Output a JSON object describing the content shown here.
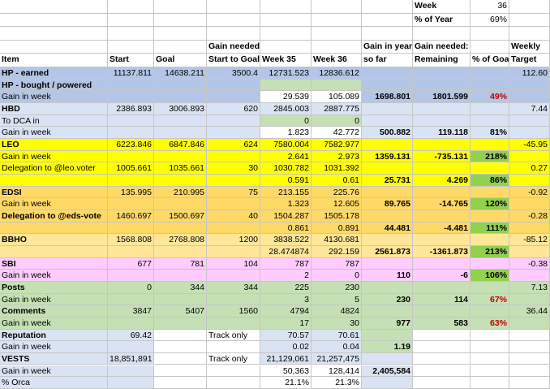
{
  "header": {
    "week_label": "Week",
    "week_value": "36",
    "pct_year_label": "% of Year",
    "pct_year_value": "69%",
    "columns": {
      "item": "Item",
      "start": "Start",
      "goal": "Goal",
      "gain_needed_l1": "Gain needed:",
      "gain_needed_l2": "Start to Goal",
      "week35": "Week 35",
      "week36": "Week 36",
      "gain_year_l1": "Gain in year",
      "gain_year_l2": "so far",
      "gain_rem_l1": "Gain needed:",
      "gain_rem_l2": "Remaining",
      "pct_goal": "% of Goal",
      "weekly_l1": "Weekly",
      "weekly_l2": "Target"
    }
  },
  "rows": [
    [
      "HP - earned",
      "11137.811",
      "14638.211",
      "3500.4",
      "12731.523",
      "12836.612",
      "",
      "",
      "",
      "112.60"
    ],
    [
      "HP - bought / powered",
      "",
      "",
      "",
      "",
      "",
      "",
      "",
      "",
      ""
    ],
    [
      "Gain in week",
      "",
      "",
      "",
      "29.539",
      "105.089",
      "1698.801",
      "1801.599",
      "49%",
      ""
    ],
    [
      "HBD",
      "2386.893",
      "3006.893",
      "620",
      "2845.003",
      "2887.775",
      "",
      "",
      "",
      "7.44"
    ],
    [
      "To DCA in",
      "",
      "",
      "",
      "0",
      "0",
      "",
      "",
      "",
      ""
    ],
    [
      "Gain in week",
      "",
      "",
      "",
      "1.823",
      "42.772",
      "500.882",
      "119.118",
      "81%",
      ""
    ],
    [
      "LEO",
      "6223.846",
      "6847.846",
      "624",
      "7580.004",
      "7582.977",
      "",
      "",
      "",
      "-45.95"
    ],
    [
      "Gain in week",
      "",
      "",
      "",
      "2.641",
      "2.973",
      "1359.131",
      "-735.131",
      "218%",
      ""
    ],
    [
      "Delegation to @leo.voter",
      "1005.661",
      "1035.661",
      "30",
      "1030.782",
      "1031.392",
      "",
      "",
      "",
      "0.27"
    ],
    [
      "",
      "",
      "",
      "",
      "0.591",
      "0.61",
      "25.731",
      "4.269",
      "86%",
      ""
    ],
    [
      "EDSI",
      "135.995",
      "210.995",
      "75",
      "213.155",
      "225.76",
      "",
      "",
      "",
      "-0.92"
    ],
    [
      "Gain in week",
      "",
      "",
      "",
      "1.323",
      "12.605",
      "89.765",
      "-14.765",
      "120%",
      ""
    ],
    [
      "Delegation to @eds-vote",
      "1460.697",
      "1500.697",
      "40",
      "1504.287",
      "1505.178",
      "",
      "",
      "",
      "-0.28"
    ],
    [
      "",
      "",
      "",
      "",
      "0.861",
      "0.891",
      "44.481",
      "-4.481",
      "111%",
      ""
    ],
    [
      "BBHO",
      "1568.808",
      "2768.808",
      "1200",
      "3838.522",
      "4130.681",
      "",
      "",
      "",
      "-85.12"
    ],
    [
      "",
      "",
      "",
      "",
      "28.474874",
      "292.159",
      "2561.873",
      "-1361.873",
      "213%",
      ""
    ],
    [
      "SBI",
      "677",
      "781",
      "104",
      "787",
      "787",
      "",
      "",
      "",
      "-0.38"
    ],
    [
      "Gain in week",
      "",
      "",
      "",
      "2",
      "0",
      "110",
      "-6",
      "106%",
      ""
    ],
    [
      "Posts",
      "0",
      "344",
      "344",
      "225",
      "230",
      "",
      "",
      "",
      "7.13"
    ],
    [
      "Gain in week",
      "",
      "",
      "",
      "3",
      "5",
      "230",
      "114",
      "67%",
      ""
    ],
    [
      "Comments",
      "3847",
      "5407",
      "1560",
      "4794",
      "4824",
      "",
      "",
      "",
      "36.44"
    ],
    [
      "Gain in week",
      "",
      "",
      "",
      "17",
      "30",
      "977",
      "583",
      "63%",
      ""
    ],
    [
      "Reputation",
      "69.42",
      "",
      "Track only",
      "70.57",
      "70.61",
      "",
      "",
      "",
      ""
    ],
    [
      "Gain in week",
      "",
      "",
      "",
      "0.02",
      "0.04",
      "1.19",
      "",
      "",
      ""
    ],
    [
      "VESTS",
      "18,851,891",
      "",
      "Track only",
      "21,129,061",
      "21,257,475",
      "",
      "",
      "",
      ""
    ],
    [
      "Gain in week",
      "",
      "",
      "",
      "50,363",
      "128,414",
      "2,405,584",
      "",
      "",
      ""
    ],
    [
      "% Orca",
      "",
      "",
      "",
      "21.1%",
      "21.3%",
      "",
      "",
      "",
      ""
    ]
  ],
  "colors": {
    "blue": "#b4c6e7",
    "lightblue": "#dae3f3",
    "yellow": "#ffff00",
    "orange": "#ffd966",
    "peach": "#ffe699",
    "pink": "#ffccff",
    "green": "#c5e0b4",
    "brightgreen": "#92d050",
    "white": "#ffffff"
  }
}
